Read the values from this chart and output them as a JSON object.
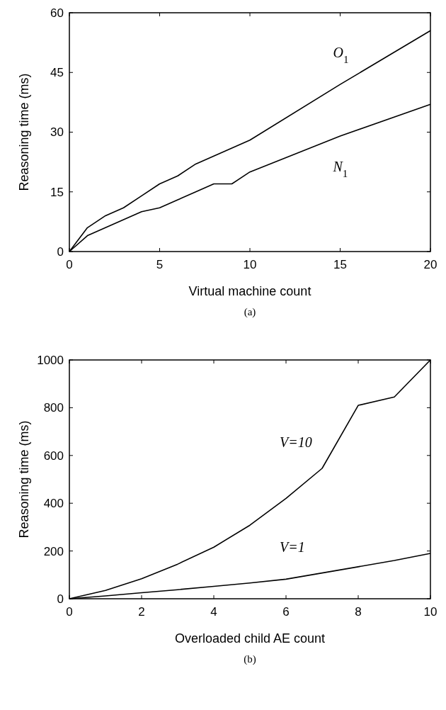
{
  "chart_data": [
    {
      "type": "line",
      "xlabel": "Virtual machine count",
      "ylabel": "Reasoning time (ms)",
      "xlim": [
        0,
        20
      ],
      "ylim": [
        0,
        60
      ],
      "xticks": [
        0,
        5,
        10,
        15,
        20
      ],
      "yticks": [
        0,
        15,
        30,
        45,
        60
      ],
      "grid": false,
      "annotations": [
        "(a)"
      ],
      "series": [
        {
          "name": "O$_{1}$",
          "color": "#000000",
          "x": [
            0,
            1,
            2,
            3,
            4,
            5,
            6,
            7,
            8,
            9,
            10,
            15,
            20
          ],
          "values": [
            0,
            6,
            9,
            11,
            14,
            17,
            19,
            22,
            24,
            26,
            28,
            42,
            55.5
          ]
        },
        {
          "name": "N$_{1}$",
          "color": "#000000",
          "x": [
            0,
            1,
            2,
            3,
            4,
            5,
            6,
            7,
            8,
            9,
            10,
            15,
            20
          ],
          "values": [
            0,
            4,
            6,
            8,
            10,
            11,
            13,
            15,
            17,
            17,
            20,
            29,
            37
          ]
        }
      ]
    },
    {
      "type": "line",
      "xlabel": "Overloaded child AE count",
      "ylabel": "Reasoning time (ms)",
      "xlim": [
        0,
        10
      ],
      "ylim": [
        0,
        1000
      ],
      "xticks": [
        0,
        2,
        4,
        6,
        8,
        10
      ],
      "yticks": [
        0,
        200,
        400,
        600,
        800,
        1000
      ],
      "grid": false,
      "annotations": [
        "(b)"
      ],
      "series": [
        {
          "name": "V=10",
          "color": "#000000",
          "x": [
            0,
            1,
            2,
            3,
            4,
            5,
            6,
            7,
            8,
            9,
            10
          ],
          "values": [
            0,
            35,
            84,
            145,
            216,
            308,
            420,
            546,
            810,
            845,
            1000
          ]
        },
        {
          "name": "V=1",
          "color": "#000000",
          "x": [
            0,
            1,
            2,
            3,
            4,
            5,
            6,
            7,
            8,
            9,
            10
          ],
          "values": [
            0,
            12,
            25,
            38,
            52,
            66,
            82,
            108,
            134,
            160,
            190
          ]
        }
      ]
    }
  ]
}
